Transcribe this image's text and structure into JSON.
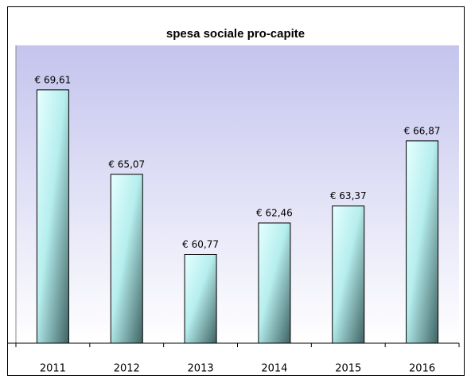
{
  "chart_data": {
    "type": "bar",
    "title": "spesa sociale pro-capite",
    "categories": [
      "2011",
      "2012",
      "2013",
      "2014",
      "2015",
      "2016"
    ],
    "values": [
      69.61,
      65.07,
      60.77,
      62.46,
      63.37,
      66.87
    ],
    "value_labels": [
      "€ 69,61",
      "€ 65,07",
      "€ 60,77",
      "€ 62,46",
      "€ 63,37",
      "€ 66,87"
    ],
    "color": "#9fdcdc",
    "ylim": [
      56,
      72
    ]
  }
}
